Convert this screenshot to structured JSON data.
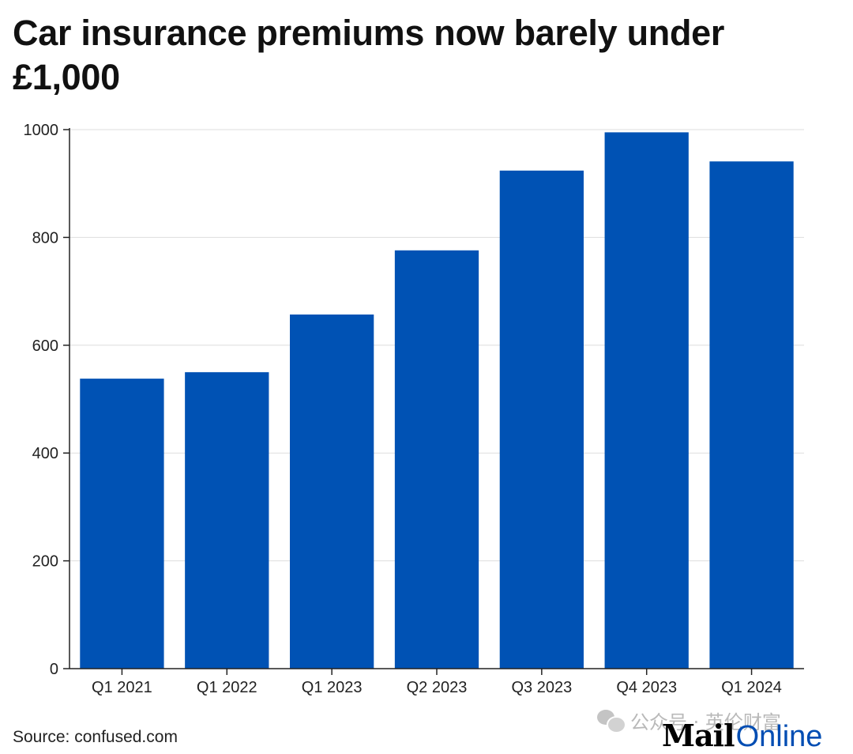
{
  "header": {
    "title": "Car insurance premiums now barely under £1,000"
  },
  "footer": {
    "source": "Source: confused.com",
    "watermark_text": "公众号 · 英伦财富",
    "logo_mail": "Mail",
    "logo_online": "Online"
  },
  "colors": {
    "bar": "#0052b4",
    "grid": "#dddddd",
    "axis": "#222222",
    "logo_online": "#004db3"
  },
  "chart_data": {
    "type": "bar",
    "title": "Car insurance premiums now barely under £1,000",
    "xlabel": "",
    "ylabel": "",
    "categories": [
      "Q1 2021",
      "Q1 2022",
      "Q1 2023",
      "Q2 2023",
      "Q3 2023",
      "Q4 2023",
      "Q1 2024"
    ],
    "values": [
      538,
      550,
      657,
      776,
      924,
      995,
      941
    ],
    "ylim": [
      0,
      1000
    ],
    "yticks": [
      0,
      200,
      400,
      600,
      800,
      1000
    ],
    "grid": true,
    "legend": "none"
  }
}
